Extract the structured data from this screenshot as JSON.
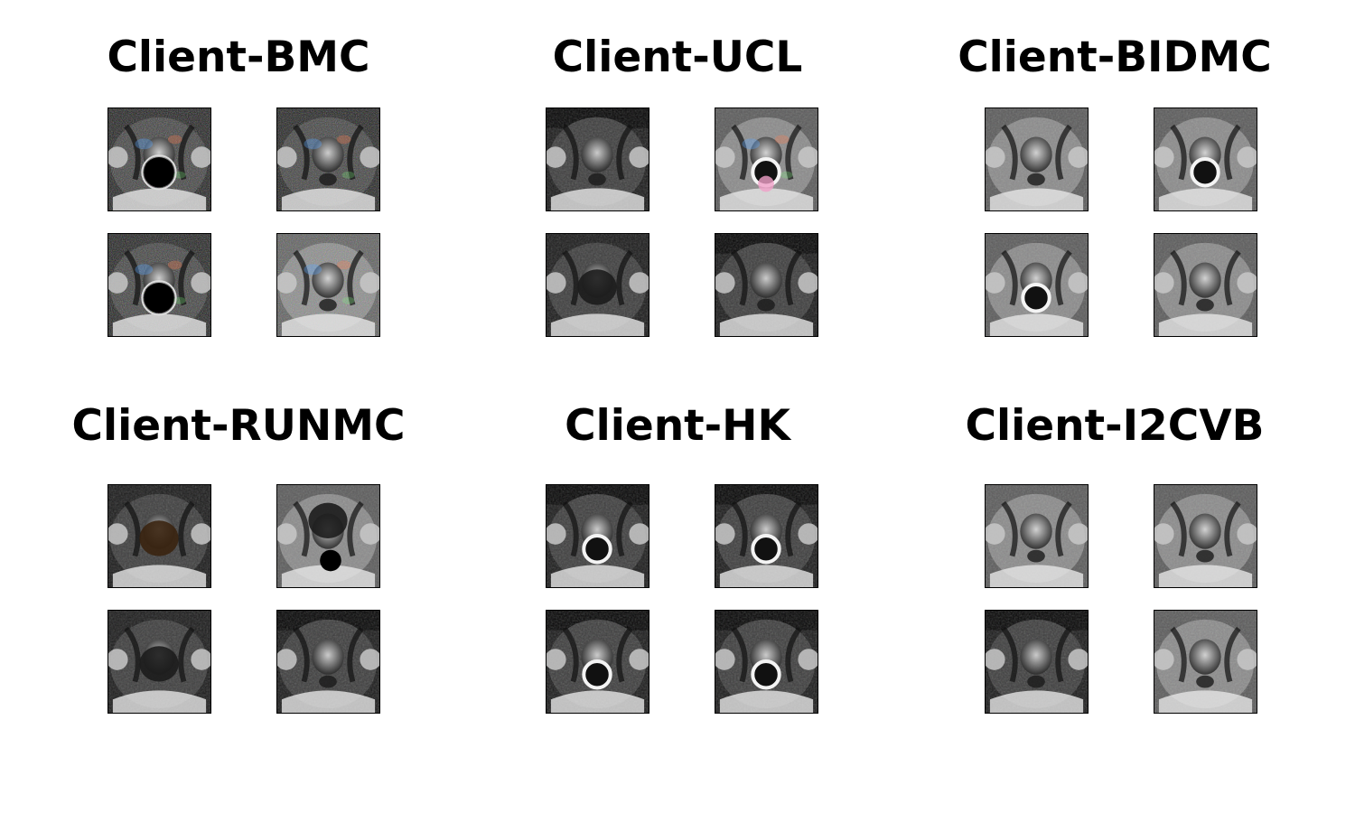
{
  "figure": {
    "panels": [
      {
        "title": "Client-BMC",
        "images": [
          {
            "icon": "mri-slice-icon",
            "style": "noisy-dark-rectum"
          },
          {
            "icon": "mri-slice-icon",
            "style": "noisy-color-artifact"
          },
          {
            "icon": "mri-slice-icon",
            "style": "noisy-dark-rectum"
          },
          {
            "icon": "mri-slice-icon",
            "style": "noisy-bright-top"
          }
        ]
      },
      {
        "title": "Client-UCL",
        "images": [
          {
            "icon": "mri-slice-icon",
            "style": "dark-top-wide"
          },
          {
            "icon": "mri-slice-icon",
            "style": "bright-ring-pink"
          },
          {
            "icon": "mri-slice-icon",
            "style": "dark-bladder"
          },
          {
            "icon": "mri-slice-icon",
            "style": "dark-top-wide"
          }
        ]
      },
      {
        "title": "Client-BIDMC",
        "images": [
          {
            "icon": "mri-slice-icon",
            "style": "gray-bright-gland"
          },
          {
            "icon": "mri-slice-icon",
            "style": "gray-ring"
          },
          {
            "icon": "mri-slice-icon",
            "style": "gray-ring"
          },
          {
            "icon": "mri-slice-icon",
            "style": "gray-bright-gland"
          }
        ]
      },
      {
        "title": "Client-RUNMC",
        "images": [
          {
            "icon": "mri-slice-icon",
            "style": "dark-bladder-brown"
          },
          {
            "icon": "mri-slice-icon",
            "style": "bright-bladder-top"
          },
          {
            "icon": "mri-slice-icon",
            "style": "dark-bladder"
          },
          {
            "icon": "mri-slice-icon",
            "style": "dark-top-wide"
          }
        ]
      },
      {
        "title": "Client-HK",
        "images": [
          {
            "icon": "mri-slice-icon",
            "style": "dark-coil-ring"
          },
          {
            "icon": "mri-slice-icon",
            "style": "dark-coil-ring"
          },
          {
            "icon": "mri-slice-icon",
            "style": "dark-coil-ring"
          },
          {
            "icon": "mri-slice-icon",
            "style": "dark-coil-ring"
          }
        ]
      },
      {
        "title": "Client-I2CVB",
        "images": [
          {
            "icon": "mri-slice-icon",
            "style": "bright-gland-gray"
          },
          {
            "icon": "mri-slice-icon",
            "style": "bright-gland-gray"
          },
          {
            "icon": "mri-slice-icon",
            "style": "dark-top-wide"
          },
          {
            "icon": "mri-slice-icon",
            "style": "bright-gland-gray"
          }
        ]
      }
    ]
  }
}
